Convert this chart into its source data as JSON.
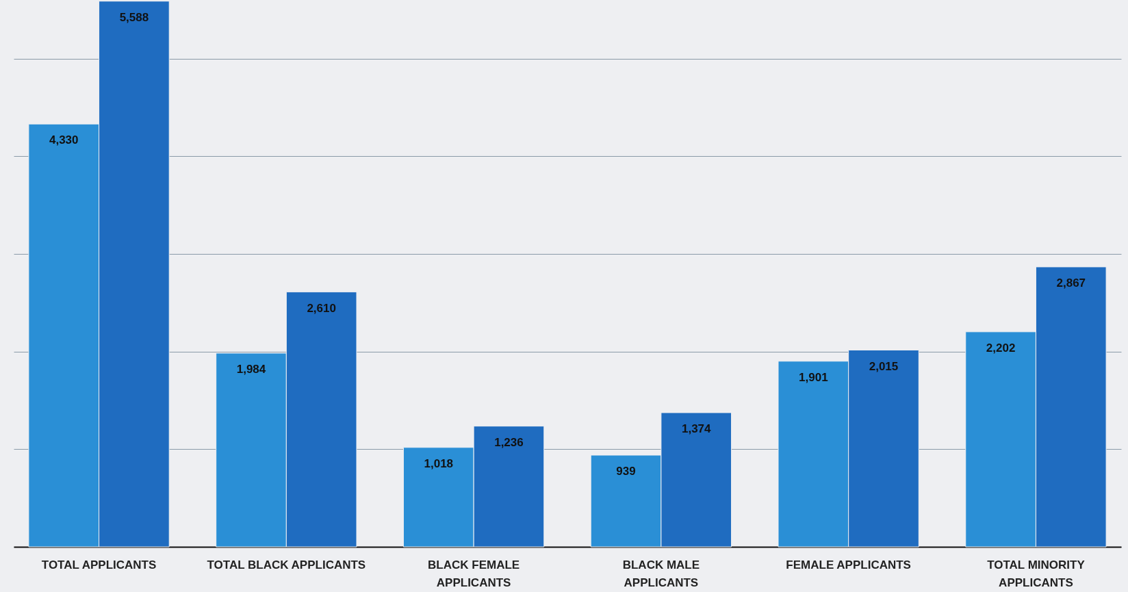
{
  "chart_data": {
    "type": "bar",
    "categories": [
      "TOTAL APPLICANTS",
      "TOTAL BLACK APPLICANTS",
      "BLACK FEMALE APPLICANTS",
      "BLACK MALE APPLICANTS",
      "FEMALE APPLICANTS",
      "TOTAL MINORITY APPLICANTS"
    ],
    "series": [
      {
        "color": "#2a8fd6",
        "values": [
          4330,
          1984,
          1018,
          939,
          1901,
          2202
        ],
        "value_labels": [
          "4,330",
          "1,984",
          "1,018",
          "939",
          "1,901",
          "2,202"
        ]
      },
      {
        "color": "#1f6cc0",
        "values": [
          5588,
          2610,
          1236,
          1374,
          2015,
          2867
        ],
        "value_labels": [
          "5,588",
          "2,610",
          "1,236",
          "1,374",
          "2,015",
          "2,867"
        ]
      }
    ],
    "ylim": [
      0,
      5600
    ],
    "yticks": [
      {
        "value": 0,
        "label": null
      },
      {
        "value": 1000,
        "label": null
      },
      {
        "value": 2000,
        "label": null
      },
      {
        "value": 3000,
        "label": null
      },
      {
        "value": 4000,
        "label": null
      },
      {
        "value": 5000,
        "label": null
      }
    ],
    "grid": "y",
    "tick_labels": "x",
    "legend": false
  }
}
